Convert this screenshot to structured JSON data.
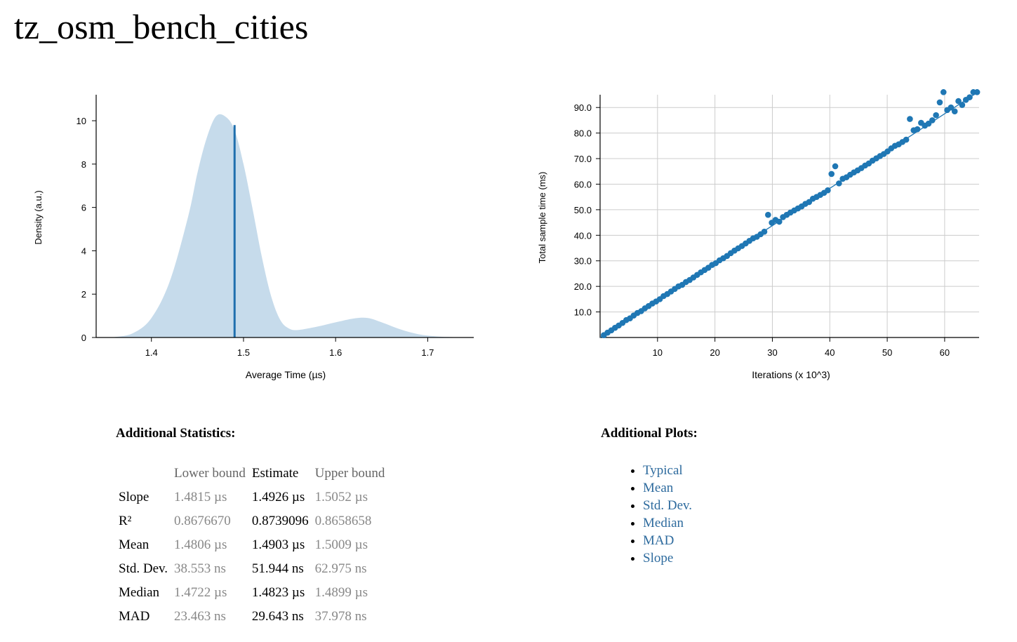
{
  "page": {
    "title": "tz_osm_bench_cities"
  },
  "chart_data": [
    {
      "type": "area",
      "xlabel": "Average Time (µs)",
      "ylabel": "Density (a.u.)",
      "xlim": [
        1.34,
        1.75
      ],
      "ylim": [
        0,
        11.2
      ],
      "xticks": [
        "1.4",
        "1.5",
        "1.6",
        "1.7"
      ],
      "yticks": [
        "0",
        "2",
        "4",
        "6",
        "8",
        "10"
      ],
      "fill_color": "#c6dbeb",
      "line_color": "#1f6fad",
      "estimate_line": {
        "x": 1.4903,
        "y": 9.8
      },
      "x": [
        1.36,
        1.38,
        1.4,
        1.42,
        1.44,
        1.45,
        1.46,
        1.47,
        1.48,
        1.49,
        1.5,
        1.51,
        1.52,
        1.53,
        1.54,
        1.55,
        1.56,
        1.58,
        1.6,
        1.62,
        1.635,
        1.65,
        1.67,
        1.69,
        1.71,
        1.73
      ],
      "y": [
        0.02,
        0.2,
        0.9,
        2.6,
        5.6,
        7.6,
        9.2,
        10.2,
        10.2,
        9.6,
        8.0,
        5.9,
        3.7,
        1.9,
        0.8,
        0.4,
        0.35,
        0.5,
        0.7,
        0.88,
        0.9,
        0.7,
        0.38,
        0.15,
        0.05,
        0.01
      ]
    },
    {
      "type": "scatter",
      "xlabel": "Iterations (x 10^3)",
      "ylabel": "Total sample time (ms)",
      "xlim": [
        0,
        66
      ],
      "ylim": [
        0,
        95
      ],
      "xticks": [
        "10",
        "20",
        "30",
        "40",
        "50",
        "60"
      ],
      "yticks": [
        "10.0",
        "20.0",
        "30.0",
        "40.0",
        "50.0",
        "60.0",
        "70.0",
        "80.0",
        "90.0"
      ],
      "grid": true,
      "point_color": "#1f77b4",
      "fit_line": {
        "x": [
          0,
          66
        ],
        "y": [
          0,
          96.3
        ]
      },
      "x": [
        0.65,
        1.3,
        1.95,
        2.6,
        3.25,
        3.9,
        4.55,
        5.2,
        5.85,
        6.5,
        7.15,
        7.8,
        8.45,
        9.1,
        9.75,
        10.4,
        11.05,
        11.7,
        12.35,
        13.0,
        13.65,
        14.3,
        14.95,
        15.6,
        16.25,
        16.9,
        17.55,
        18.2,
        18.85,
        19.5,
        20.15,
        20.8,
        21.45,
        22.1,
        22.75,
        23.4,
        24.05,
        24.7,
        25.35,
        26.0,
        26.65,
        27.3,
        27.95,
        28.6,
        29.25,
        29.9,
        30.55,
        31.2,
        31.85,
        32.5,
        33.15,
        33.8,
        34.45,
        35.1,
        35.75,
        36.4,
        37.05,
        37.7,
        38.35,
        39.0,
        39.65,
        40.3,
        40.95,
        41.6,
        42.25,
        42.9,
        43.55,
        44.2,
        44.85,
        45.5,
        46.15,
        46.8,
        47.45,
        48.1,
        48.75,
        49.4,
        50.05,
        50.7,
        51.35,
        52.0,
        52.65,
        53.3,
        53.95,
        54.6,
        55.25,
        55.9,
        56.55,
        57.2,
        57.85,
        58.5,
        59.15,
        59.8,
        60.45,
        61.1,
        61.75,
        62.4,
        63.05,
        63.7,
        64.35,
        65.0,
        65.65
      ],
      "y": [
        0.9,
        1.9,
        2.8,
        3.8,
        4.7,
        5.7,
        6.8,
        7.5,
        8.6,
        9.6,
        10.3,
        11.4,
        12.3,
        13.3,
        14.1,
        15.0,
        16.2,
        17.0,
        18.0,
        19.0,
        20.0,
        20.6,
        21.7,
        22.5,
        23.5,
        24.5,
        25.5,
        26.4,
        27.3,
        28.4,
        29.1,
        30.2,
        31.0,
        31.9,
        33.0,
        34.0,
        34.9,
        35.8,
        36.8,
        37.8,
        38.8,
        39.4,
        40.4,
        41.4,
        48.0,
        44.9,
        46.0,
        45.3,
        47.1,
        48.0,
        48.9,
        49.7,
        50.5,
        51.3,
        52.3,
        53.0,
        54.3,
        55.0,
        55.8,
        56.6,
        57.6,
        64.0,
        67.0,
        60.3,
        62.1,
        62.7,
        63.7,
        64.6,
        65.4,
        66.3,
        67.3,
        68.1,
        69.2,
        70.1,
        71.0,
        71.8,
        72.8,
        74.0,
        75.0,
        75.6,
        76.5,
        77.4,
        85.5,
        81.1,
        81.5,
        84.0,
        82.9,
        83.7,
        85.0,
        87.0,
        92.0,
        96.0,
        89.0,
        90.0,
        88.5,
        92.5,
        91.0,
        93.0,
        94.0,
        96.0,
        96.0
      ]
    }
  ],
  "stats": {
    "heading": "Additional Statistics:",
    "columns": [
      "",
      "Lower bound",
      "Estimate",
      "Upper bound"
    ],
    "rows": [
      {
        "label": "Slope",
        "lower": "1.4815 µs",
        "estimate": "1.4926 µs",
        "upper": "1.5052 µs"
      },
      {
        "label": "R²",
        "lower": "0.8676670",
        "estimate": "0.8739096",
        "upper": "0.8658658"
      },
      {
        "label": "Mean",
        "lower": "1.4806 µs",
        "estimate": "1.4903 µs",
        "upper": "1.5009 µs"
      },
      {
        "label": "Std. Dev.",
        "lower": "38.553 ns",
        "estimate": "51.944 ns",
        "upper": "62.975 ns"
      },
      {
        "label": "Median",
        "lower": "1.4722 µs",
        "estimate": "1.4823 µs",
        "upper": "1.4899 µs"
      },
      {
        "label": "MAD",
        "lower": "23.463 ns",
        "estimate": "29.643 ns",
        "upper": "37.978 ns"
      }
    ]
  },
  "plots": {
    "heading": "Additional Plots:",
    "links": [
      "Typical",
      "Mean",
      "Std. Dev.",
      "Median",
      "MAD",
      "Slope"
    ]
  }
}
